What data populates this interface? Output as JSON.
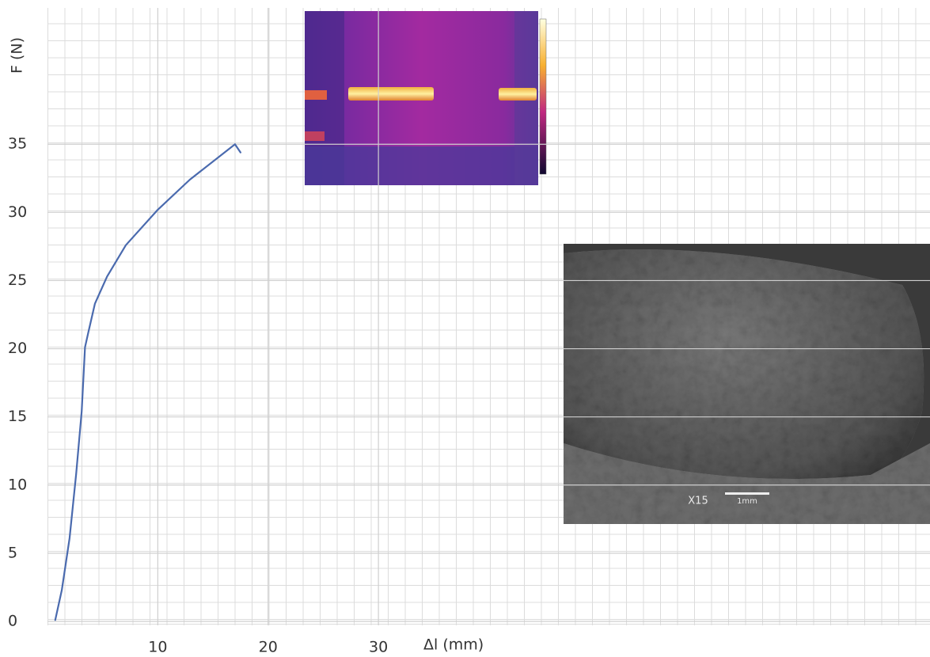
{
  "chart_data": {
    "type": "line",
    "xlabel": "Δl (mm)",
    "ylabel": "F (N)",
    "xlim": [
      0,
      80
    ],
    "ylim": [
      0,
      45
    ],
    "xticks": [
      10,
      20,
      30
    ],
    "yticks": [
      0,
      5,
      10,
      15,
      20,
      25,
      30,
      35
    ],
    "grid": true,
    "series": [
      {
        "name": "F",
        "color": "#4a6aae",
        "x": [
          0.7,
          1.3,
          2.0,
          2.6,
          3.1,
          3.4,
          3.7,
          4.3,
          5.4,
          7.1,
          10.0,
          12.9,
          17.0,
          17.5
        ],
        "values": [
          0.1,
          2.3,
          6.1,
          10.8,
          15.4,
          20.1,
          21.2,
          23.3,
          25.3,
          27.6,
          30.2,
          32.4,
          35.0,
          34.4
        ]
      }
    ],
    "annotations": [
      "X15",
      "1mm"
    ]
  }
}
